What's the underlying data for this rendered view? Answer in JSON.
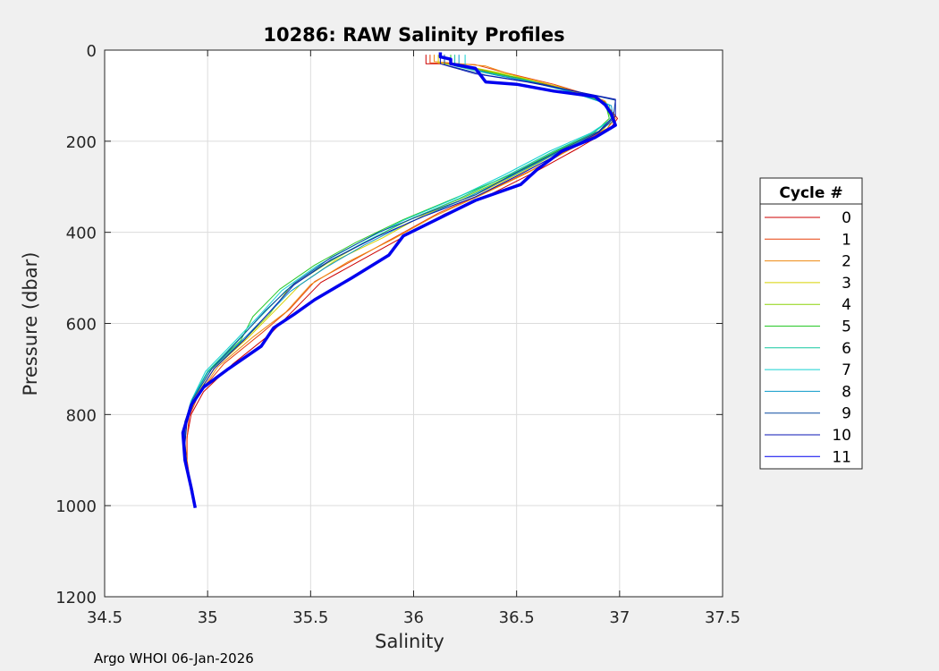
{
  "chart_data": {
    "type": "line",
    "title": "10286: RAW Salinity Profiles",
    "xlabel": "Salinity",
    "ylabel": "Pressure (dbar)",
    "xlim": [
      34.5,
      37.5
    ],
    "ylim": [
      0,
      1200
    ],
    "y_reversed": true,
    "xticks": [
      "34.5",
      "35",
      "35.5",
      "36",
      "36.5",
      "37",
      "37.5"
    ],
    "yticks": [
      "0",
      "200",
      "400",
      "600",
      "800",
      "1000",
      "1200"
    ],
    "grid": true,
    "legend": {
      "title": "Cycle #",
      "placement": "right"
    },
    "series": [
      {
        "name": "0",
        "color": "#cc0000",
        "width": 1,
        "points": [
          [
            36.06,
            10
          ],
          [
            36.06,
            30
          ],
          [
            36.22,
            30
          ],
          [
            36.42,
            55
          ],
          [
            36.7,
            80
          ],
          [
            36.92,
            110
          ],
          [
            36.99,
            150
          ],
          [
            36.95,
            175
          ],
          [
            36.8,
            215
          ],
          [
            36.6,
            265
          ],
          [
            36.38,
            315
          ],
          [
            36.15,
            360
          ],
          [
            35.95,
            410
          ],
          [
            35.75,
            460
          ],
          [
            35.55,
            510
          ],
          [
            35.42,
            570
          ],
          [
            35.3,
            625
          ],
          [
            35.12,
            690
          ],
          [
            34.98,
            750
          ],
          [
            34.92,
            800
          ],
          [
            34.9,
            850
          ],
          [
            34.9,
            900
          ],
          [
            34.92,
            960
          ]
        ]
      },
      {
        "name": "1",
        "color": "#e8400a",
        "width": 1,
        "points": [
          [
            36.08,
            10
          ],
          [
            36.08,
            28
          ],
          [
            36.3,
            32
          ],
          [
            36.45,
            50
          ],
          [
            36.68,
            75
          ],
          [
            36.9,
            105
          ],
          [
            36.98,
            145
          ],
          [
            36.94,
            172
          ],
          [
            36.78,
            212
          ],
          [
            36.58,
            262
          ],
          [
            36.35,
            312
          ],
          [
            36.12,
            358
          ],
          [
            35.92,
            408
          ],
          [
            35.72,
            458
          ],
          [
            35.52,
            508
          ],
          [
            35.4,
            568
          ],
          [
            35.26,
            622
          ],
          [
            35.08,
            688
          ],
          [
            34.96,
            752
          ],
          [
            34.91,
            805
          ],
          [
            34.9,
            855
          ],
          [
            34.9,
            905
          ],
          [
            34.92,
            965
          ]
        ]
      },
      {
        "name": "2",
        "color": "#ee8a10",
        "width": 1,
        "points": [
          [
            36.1,
            10
          ],
          [
            36.1,
            25
          ],
          [
            36.35,
            35
          ],
          [
            36.5,
            58
          ],
          [
            36.72,
            82
          ],
          [
            36.93,
            112
          ],
          [
            36.98,
            150
          ],
          [
            36.93,
            178
          ],
          [
            36.76,
            218
          ],
          [
            36.55,
            270
          ],
          [
            36.32,
            320
          ],
          [
            36.1,
            365
          ],
          [
            35.9,
            415
          ],
          [
            35.68,
            465
          ],
          [
            35.5,
            515
          ],
          [
            35.38,
            575
          ],
          [
            35.22,
            630
          ],
          [
            35.05,
            695
          ],
          [
            34.95,
            760
          ],
          [
            34.9,
            810
          ],
          [
            34.89,
            860
          ],
          [
            34.9,
            910
          ],
          [
            34.92,
            968
          ]
        ]
      },
      {
        "name": "3",
        "color": "#d6d200",
        "width": 1,
        "points": [
          [
            36.12,
            10
          ],
          [
            36.12,
            28
          ],
          [
            36.28,
            38
          ],
          [
            36.48,
            55
          ],
          [
            36.7,
            80
          ],
          [
            36.91,
            108
          ],
          [
            36.97,
            148
          ],
          [
            36.92,
            175
          ],
          [
            36.74,
            215
          ],
          [
            36.53,
            267
          ],
          [
            36.3,
            318
          ],
          [
            36.05,
            362
          ],
          [
            35.85,
            412
          ],
          [
            35.62,
            462
          ],
          [
            35.45,
            515
          ],
          [
            35.32,
            575
          ],
          [
            35.2,
            630
          ],
          [
            35.04,
            695
          ],
          [
            34.94,
            760
          ],
          [
            34.9,
            810
          ],
          [
            34.89,
            860
          ],
          [
            34.9,
            910
          ],
          [
            34.93,
            970
          ]
        ]
      },
      {
        "name": "4",
        "color": "#8cd20a",
        "width": 1,
        "points": [
          [
            36.15,
            10
          ],
          [
            36.15,
            30
          ],
          [
            36.3,
            40
          ],
          [
            36.5,
            60
          ],
          [
            36.72,
            85
          ],
          [
            36.92,
            112
          ],
          [
            36.96,
            150
          ],
          [
            36.9,
            178
          ],
          [
            36.72,
            218
          ],
          [
            36.5,
            270
          ],
          [
            36.25,
            322
          ],
          [
            36.0,
            368
          ],
          [
            35.78,
            418
          ],
          [
            35.58,
            468
          ],
          [
            35.4,
            520
          ],
          [
            35.3,
            580
          ],
          [
            35.18,
            635
          ],
          [
            35.02,
            700
          ],
          [
            34.93,
            765
          ],
          [
            34.89,
            815
          ],
          [
            34.89,
            865
          ],
          [
            34.9,
            915
          ],
          [
            34.93,
            972
          ]
        ]
      },
      {
        "name": "5",
        "color": "#28c828",
        "width": 1,
        "points": [
          [
            36.18,
            10
          ],
          [
            36.18,
            32
          ],
          [
            36.32,
            45
          ],
          [
            36.52,
            62
          ],
          [
            36.74,
            88
          ],
          [
            36.93,
            115
          ],
          [
            36.95,
            150
          ],
          [
            36.88,
            180
          ],
          [
            36.7,
            220
          ],
          [
            36.48,
            272
          ],
          [
            36.2,
            325
          ],
          [
            35.95,
            372
          ],
          [
            35.72,
            422
          ],
          [
            35.52,
            472
          ],
          [
            35.35,
            525
          ],
          [
            35.22,
            585
          ],
          [
            35.16,
            638
          ],
          [
            35.0,
            705
          ],
          [
            34.92,
            770
          ],
          [
            34.89,
            820
          ],
          [
            34.89,
            870
          ],
          [
            34.9,
            920
          ],
          [
            34.93,
            975
          ]
        ]
      },
      {
        "name": "6",
        "color": "#14c8a0",
        "width": 1,
        "points": [
          [
            36.2,
            10
          ],
          [
            36.2,
            35
          ],
          [
            36.35,
            50
          ],
          [
            36.55,
            68
          ],
          [
            36.76,
            92
          ],
          [
            36.94,
            118
          ],
          [
            36.96,
            152
          ],
          [
            36.87,
            182
          ],
          [
            36.68,
            222
          ],
          [
            36.46,
            274
          ],
          [
            36.22,
            326
          ],
          [
            35.97,
            374
          ],
          [
            35.75,
            424
          ],
          [
            35.55,
            474
          ],
          [
            35.38,
            528
          ],
          [
            35.25,
            588
          ],
          [
            35.14,
            640
          ],
          [
            35.0,
            705
          ],
          [
            34.92,
            770
          ],
          [
            34.89,
            820
          ],
          [
            34.89,
            870
          ],
          [
            34.9,
            920
          ],
          [
            34.93,
            975
          ]
        ]
      },
      {
        "name": "7",
        "color": "#14d2d2",
        "width": 1,
        "points": [
          [
            36.25,
            10
          ],
          [
            36.25,
            38
          ],
          [
            36.38,
            52
          ],
          [
            36.58,
            70
          ],
          [
            36.78,
            94
          ],
          [
            36.95,
            120
          ],
          [
            36.96,
            152
          ],
          [
            36.86,
            182
          ],
          [
            36.66,
            222
          ],
          [
            36.44,
            274
          ],
          [
            36.2,
            326
          ],
          [
            35.95,
            374
          ],
          [
            35.73,
            424
          ],
          [
            35.53,
            474
          ],
          [
            35.36,
            528
          ],
          [
            35.24,
            588
          ],
          [
            35.13,
            640
          ],
          [
            34.99,
            705
          ],
          [
            34.92,
            770
          ],
          [
            34.89,
            820
          ],
          [
            34.89,
            870
          ],
          [
            34.9,
            920
          ],
          [
            34.93,
            975
          ]
        ]
      },
      {
        "name": "8",
        "color": "#0a9ac8",
        "width": 1,
        "points": [
          [
            36.22,
            10
          ],
          [
            36.22,
            35
          ],
          [
            36.4,
            55
          ],
          [
            36.6,
            72
          ],
          [
            36.8,
            96
          ],
          [
            36.96,
            122
          ],
          [
            36.97,
            155
          ],
          [
            36.88,
            185
          ],
          [
            36.7,
            225
          ],
          [
            36.47,
            278
          ],
          [
            36.23,
            330
          ],
          [
            35.98,
            378
          ],
          [
            35.76,
            428
          ],
          [
            35.57,
            478
          ],
          [
            35.4,
            530
          ],
          [
            35.27,
            590
          ],
          [
            35.15,
            645
          ],
          [
            35.0,
            708
          ],
          [
            34.92,
            772
          ],
          [
            34.89,
            822
          ],
          [
            34.89,
            872
          ],
          [
            34.9,
            922
          ],
          [
            34.93,
            978
          ]
        ]
      },
      {
        "name": "9",
        "color": "#0a4aa0",
        "width": 1,
        "points": [
          [
            36.15,
            10
          ],
          [
            36.15,
            32
          ],
          [
            36.35,
            55
          ],
          [
            36.62,
            74
          ],
          [
            36.82,
            94
          ],
          [
            36.98,
            110
          ],
          [
            36.97,
            145
          ],
          [
            36.9,
            178
          ],
          [
            36.72,
            218
          ],
          [
            36.5,
            268
          ],
          [
            36.3,
            318
          ],
          [
            36.06,
            358
          ],
          [
            35.83,
            400
          ],
          [
            35.6,
            455
          ],
          [
            35.42,
            512
          ],
          [
            35.28,
            572
          ],
          [
            35.16,
            632
          ],
          [
            35.02,
            700
          ],
          [
            34.93,
            765
          ],
          [
            34.89,
            815
          ],
          [
            34.89,
            865
          ],
          [
            34.9,
            915
          ],
          [
            34.93,
            970
          ]
        ]
      },
      {
        "name": "10",
        "color": "#0a14b4",
        "width": 1,
        "points": [
          [
            36.13,
            10
          ],
          [
            36.13,
            30
          ],
          [
            36.3,
            52
          ],
          [
            36.55,
            70
          ],
          [
            36.8,
            92
          ],
          [
            36.98,
            108
          ],
          [
            36.98,
            145
          ],
          [
            36.9,
            180
          ],
          [
            36.74,
            220
          ],
          [
            36.52,
            272
          ],
          [
            36.3,
            322
          ],
          [
            36.05,
            365
          ],
          [
            35.82,
            410
          ],
          [
            35.6,
            460
          ],
          [
            35.42,
            515
          ],
          [
            35.3,
            575
          ],
          [
            35.18,
            635
          ],
          [
            35.03,
            700
          ],
          [
            34.94,
            765
          ],
          [
            34.9,
            815
          ],
          [
            34.89,
            865
          ],
          [
            34.9,
            915
          ],
          [
            34.93,
            972
          ]
        ]
      },
      {
        "name": "11",
        "color": "#0000ee",
        "width": 3.5,
        "points": [
          [
            36.13,
            5
          ],
          [
            36.13,
            15
          ],
          [
            36.18,
            20
          ],
          [
            36.18,
            30
          ],
          [
            36.3,
            40
          ],
          [
            36.35,
            70
          ],
          [
            36.5,
            75
          ],
          [
            36.68,
            90
          ],
          [
            36.88,
            102
          ],
          [
            36.93,
            120
          ],
          [
            36.96,
            140
          ],
          [
            36.98,
            165
          ],
          [
            36.88,
            192
          ],
          [
            36.72,
            222
          ],
          [
            36.6,
            262
          ],
          [
            36.52,
            295
          ],
          [
            36.3,
            330
          ],
          [
            36.12,
            370
          ],
          [
            35.95,
            408
          ],
          [
            35.88,
            450
          ],
          [
            35.7,
            500
          ],
          [
            35.52,
            548
          ],
          [
            35.42,
            580
          ],
          [
            35.32,
            610
          ],
          [
            35.26,
            650
          ],
          [
            35.1,
            700
          ],
          [
            34.98,
            740
          ],
          [
            34.92,
            780
          ],
          [
            34.88,
            840
          ],
          [
            34.89,
            900
          ],
          [
            34.92,
            960
          ],
          [
            34.94,
            1005
          ]
        ]
      }
    ]
  },
  "footer": "Argo WHOI 06-Jan-2026"
}
